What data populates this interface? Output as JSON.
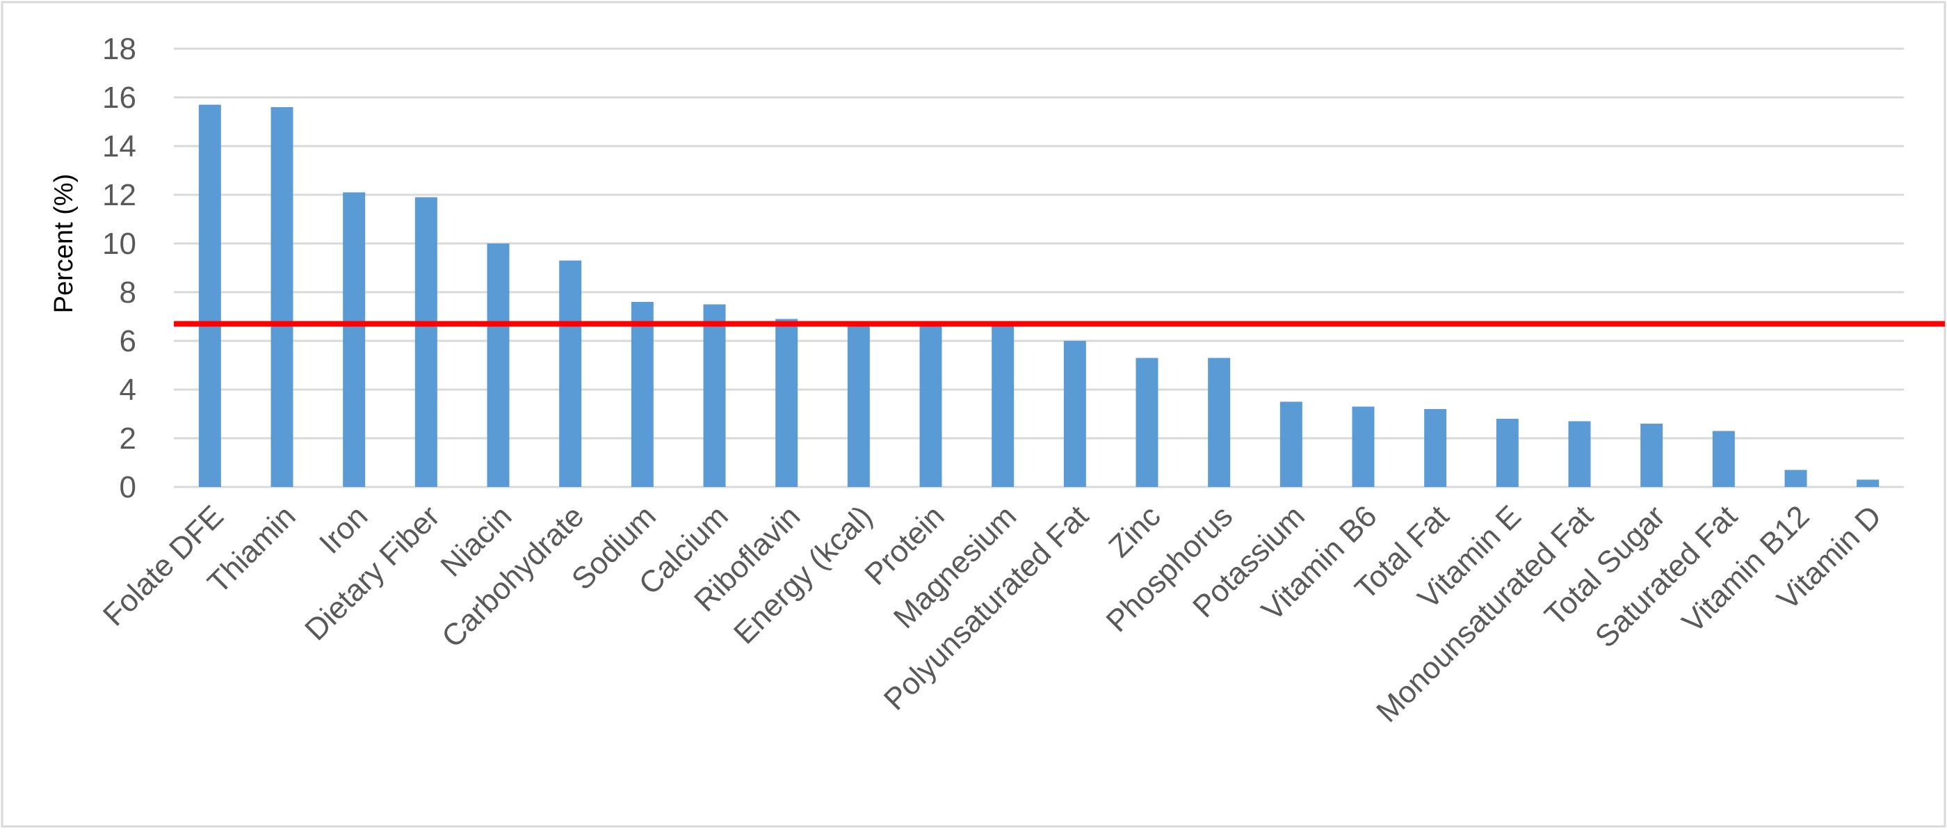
{
  "chart_data": {
    "type": "bar",
    "title": "",
    "xlabel": "",
    "ylabel": "Percent (%)",
    "ylim": [
      0,
      18
    ],
    "yticks": [
      0,
      2,
      4,
      6,
      8,
      10,
      12,
      14,
      16,
      18
    ],
    "grid": true,
    "legend": "none",
    "categories": [
      "Folate DFE",
      "Thiamin",
      "Iron",
      "Dietary Fiber",
      "Niacin",
      "Carbohydrate",
      "Sodium",
      "Calcium",
      "Riboflavin",
      "Energy (kcal)",
      "Protein",
      "Magnesium",
      "Polyunsaturated Fat",
      "Zinc",
      "Phosphorus",
      "Potassium",
      "Vitamin B6",
      "Total Fat",
      "Vitamin E",
      "Monounsaturated Fat",
      "Total Sugar",
      "Saturated Fat",
      "Vitamin B12",
      "Vitamin D"
    ],
    "values": [
      15.7,
      15.6,
      12.1,
      11.9,
      10.0,
      9.3,
      7.6,
      7.5,
      6.9,
      6.8,
      6.6,
      6.6,
      6.0,
      5.3,
      5.3,
      3.5,
      3.3,
      3.2,
      2.8,
      2.7,
      2.6,
      2.3,
      0.7,
      0.3
    ],
    "reference_line": {
      "value": 6.7
    },
    "colors": {
      "bar": "#5b9bd5",
      "reference_line": "#ff0000",
      "grid": "#d9d9d9",
      "frame": "#d9d9d9"
    }
  }
}
